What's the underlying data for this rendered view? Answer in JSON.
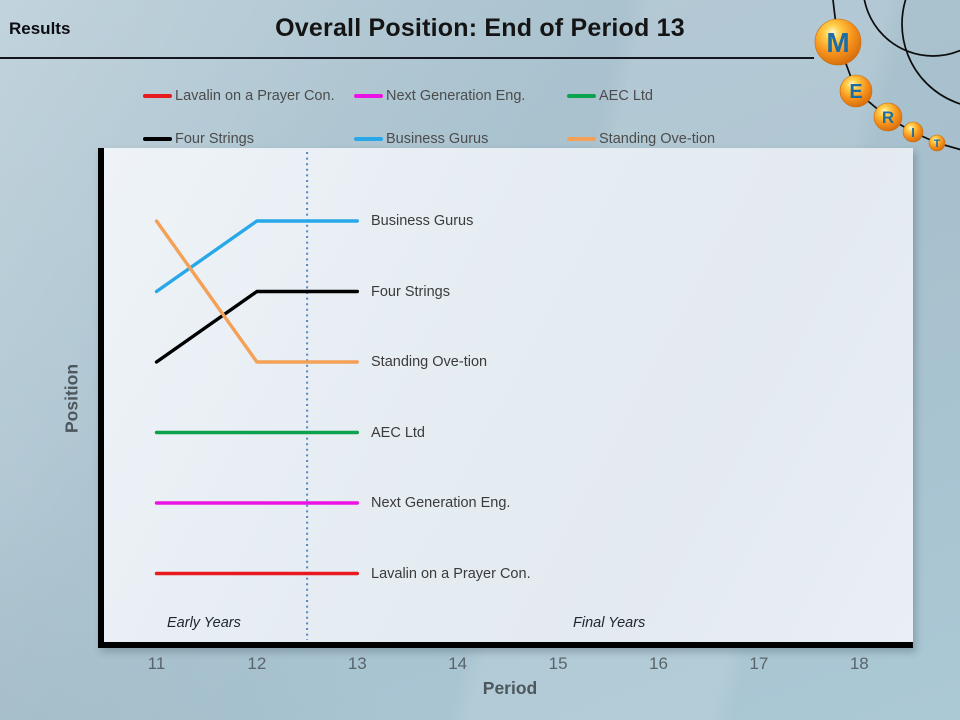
{
  "header": {
    "section_label": "Results",
    "title": "Overall Position: End of Period 13"
  },
  "logo": {
    "letters": [
      "M",
      "E",
      "R",
      "I",
      "T"
    ],
    "ball_color": "#f7941d",
    "letter_color": "#1b6da6"
  },
  "legend": {
    "items": [
      {
        "label": "Lavalin on a Prayer Con.",
        "color": "#e81a1f"
      },
      {
        "label": "Next Generation Eng.",
        "color": "#ec12e4"
      },
      {
        "label": "AEC Ltd",
        "color": "#0ba24d"
      },
      {
        "label": "Four Strings",
        "color": "#000000"
      },
      {
        "label": "Business Gurus",
        "color": "#28a8e9"
      },
      {
        "label": "Standing Ove-tion",
        "color": "#f4a056"
      }
    ]
  },
  "chart_data": {
    "type": "line",
    "x": [
      11,
      12,
      13
    ],
    "x_ticks": [
      11,
      12,
      13,
      14,
      15,
      16,
      17,
      18
    ],
    "xlabel": "Period",
    "ylabel": "Position",
    "ylim": [
      1,
      6
    ],
    "y_inverted": true,
    "grid": false,
    "series": [
      {
        "name": "Business Gurus",
        "color": "#28a8e9",
        "values": [
          2,
          1,
          1
        ]
      },
      {
        "name": "Four Strings",
        "color": "#000000",
        "values": [
          3,
          2,
          2
        ]
      },
      {
        "name": "Standing Ove-tion",
        "color": "#f4a056",
        "values": [
          1,
          3,
          3
        ]
      },
      {
        "name": "AEC Ltd",
        "color": "#0ba24d",
        "values": [
          4,
          4,
          4
        ]
      },
      {
        "name": "Next Generation Eng.",
        "color": "#ec12e4",
        "values": [
          5,
          5,
          5
        ]
      },
      {
        "name": "Lavalin on a Prayer Con.",
        "color": "#e81a1f",
        "values": [
          6,
          6,
          6
        ]
      }
    ],
    "annotations": {
      "early_years": "Early Years",
      "final_years": "Final Years",
      "reference_line_x": 12.5
    }
  }
}
